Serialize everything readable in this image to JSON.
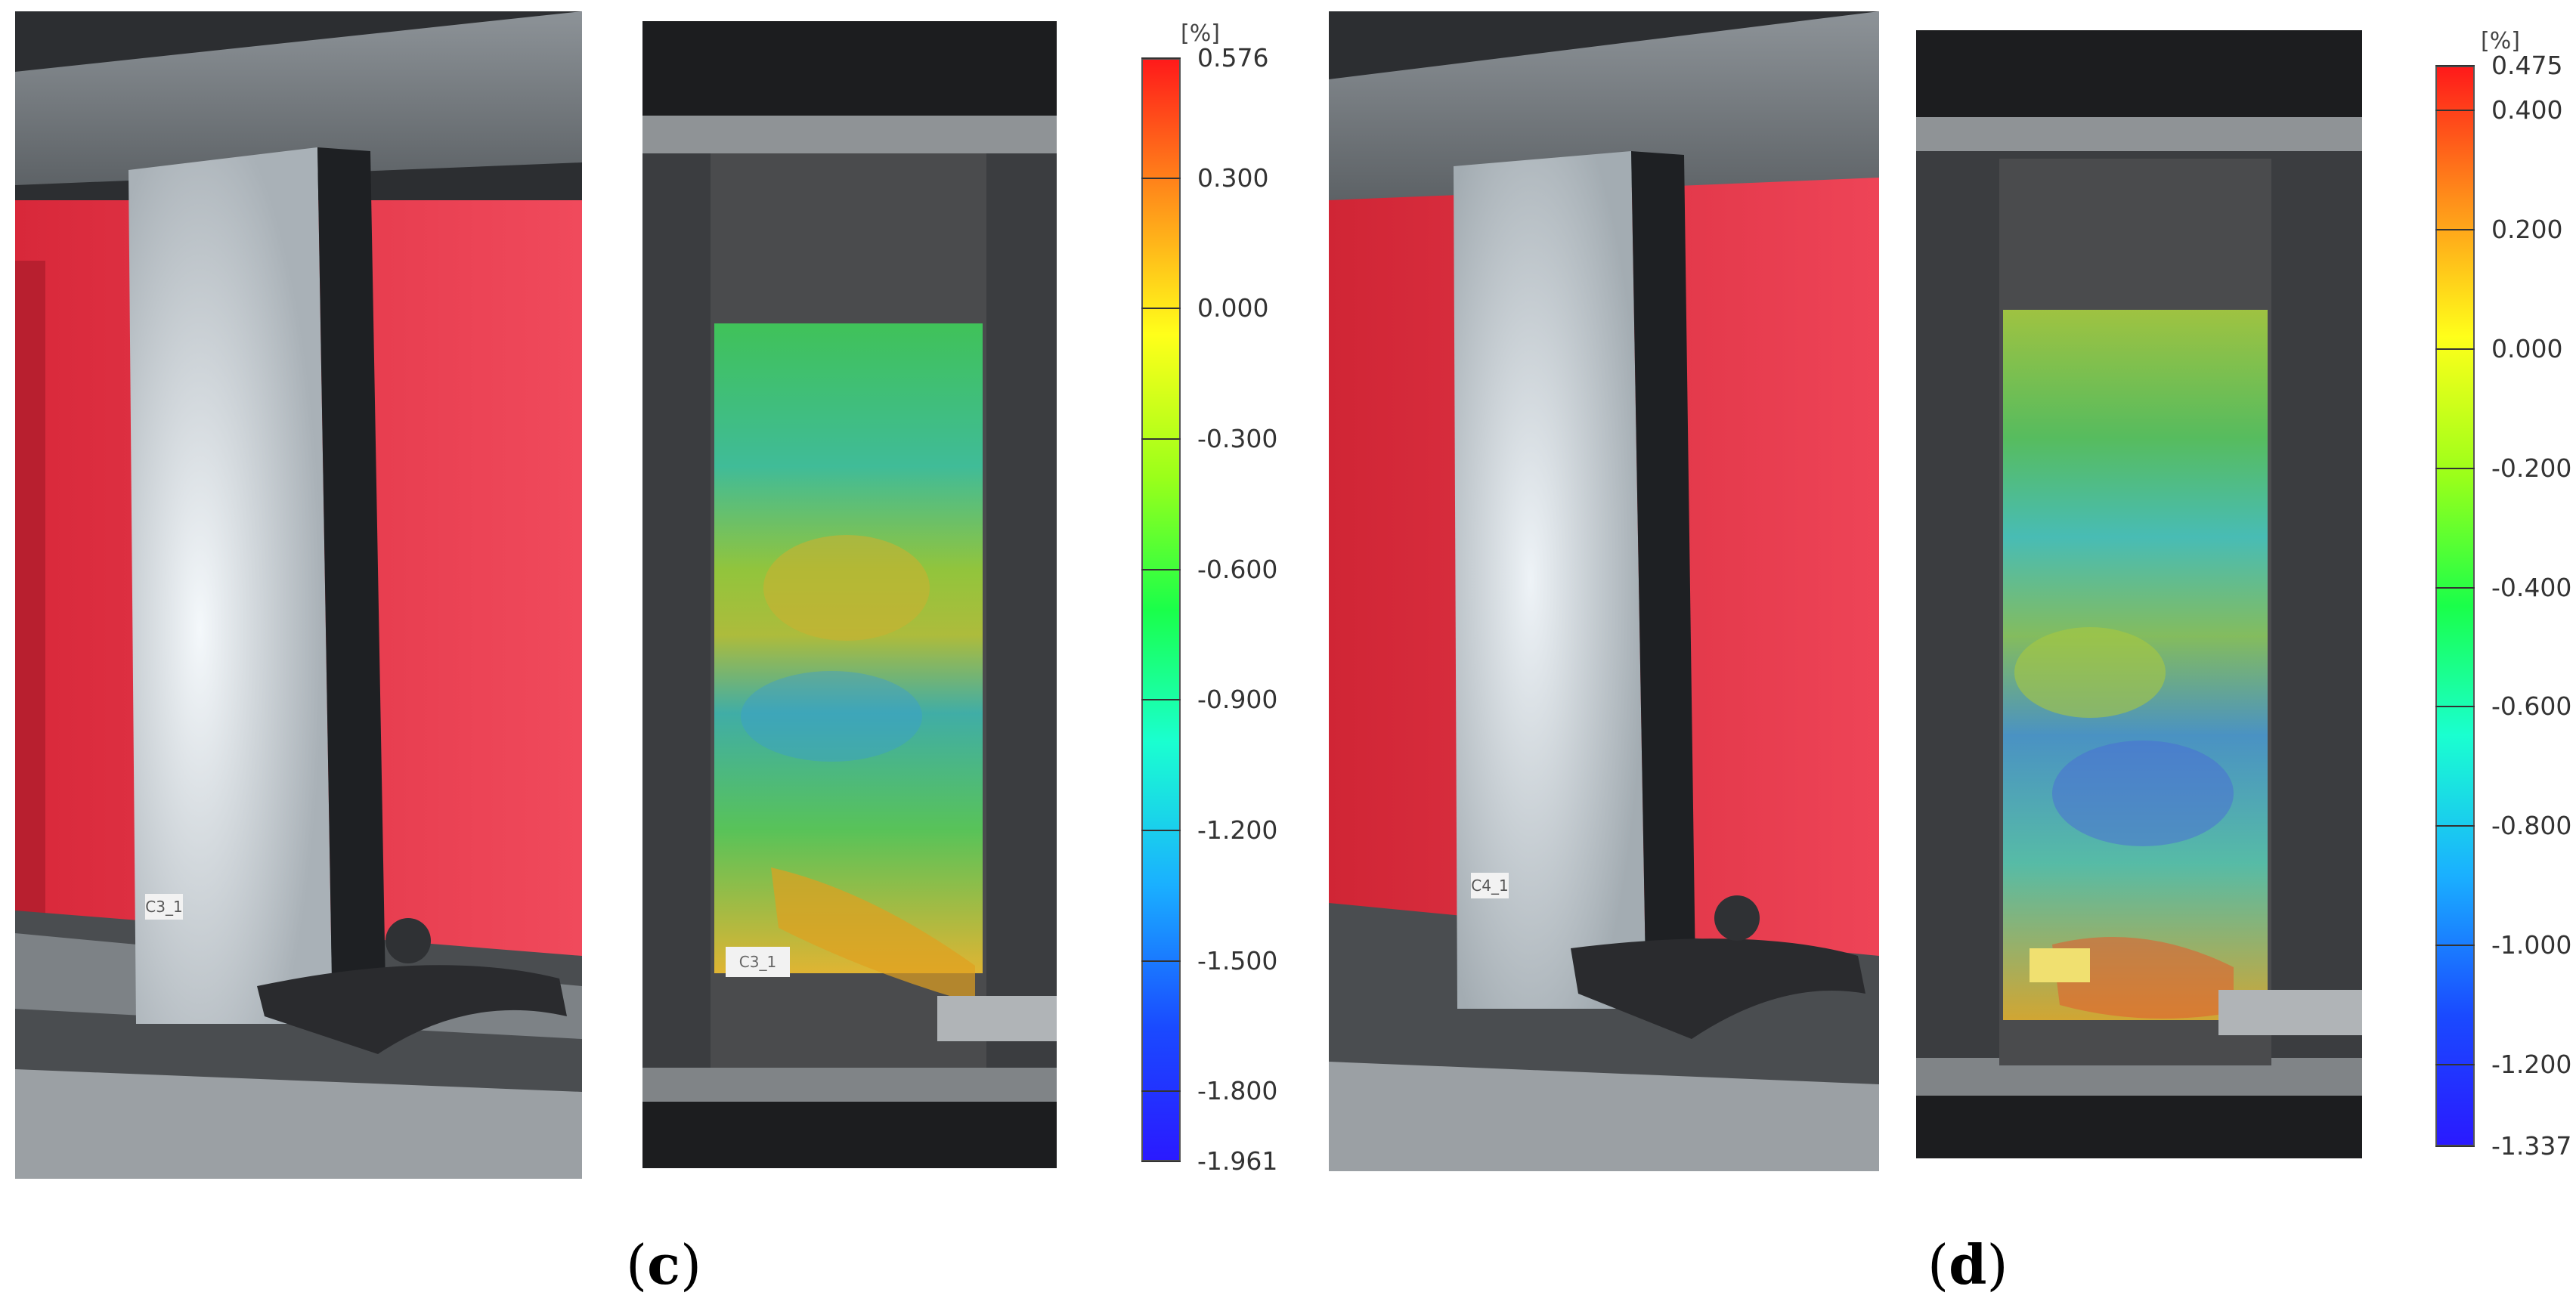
{
  "panels": [
    {
      "id": "c",
      "label_open": "(",
      "label_letter": "c",
      "label_close": ")",
      "photo_tag": "C3_1",
      "dic_tag": "C3_1",
      "colorbar": {
        "unit": "[%]",
        "min": -1.961,
        "max": 0.576,
        "ticks": [
          "0.576",
          "0.300",
          "0.000",
          "-0.300",
          "-0.600",
          "-0.900",
          "-1.200",
          "-1.500",
          "-1.800",
          "-1.961"
        ],
        "tick_values": [
          0.576,
          0.3,
          0.0,
          -0.3,
          -0.6,
          -0.9,
          -1.2,
          -1.5,
          -1.8,
          -1.961
        ]
      }
    },
    {
      "id": "d",
      "label_open": "(",
      "label_letter": "d",
      "label_close": ")",
      "photo_tag": "C4_1",
      "dic_tag": "",
      "colorbar": {
        "unit": "[%]",
        "min": -1.337,
        "max": 0.475,
        "ticks": [
          "0.475",
          "0.400",
          "0.200",
          "0.000",
          "-0.200",
          "-0.400",
          "-0.600",
          "-0.800",
          "-1.000",
          "-1.200",
          "-1.337"
        ],
        "tick_values": [
          0.475,
          0.4,
          0.2,
          0.0,
          -0.2,
          -0.4,
          -0.6,
          -0.8,
          -1.0,
          -1.2,
          -1.337
        ]
      }
    }
  ],
  "colors": {
    "backdrop_red": "#e8374a",
    "steel": "#8e9498",
    "dark_steel": "#3a3d40"
  }
}
